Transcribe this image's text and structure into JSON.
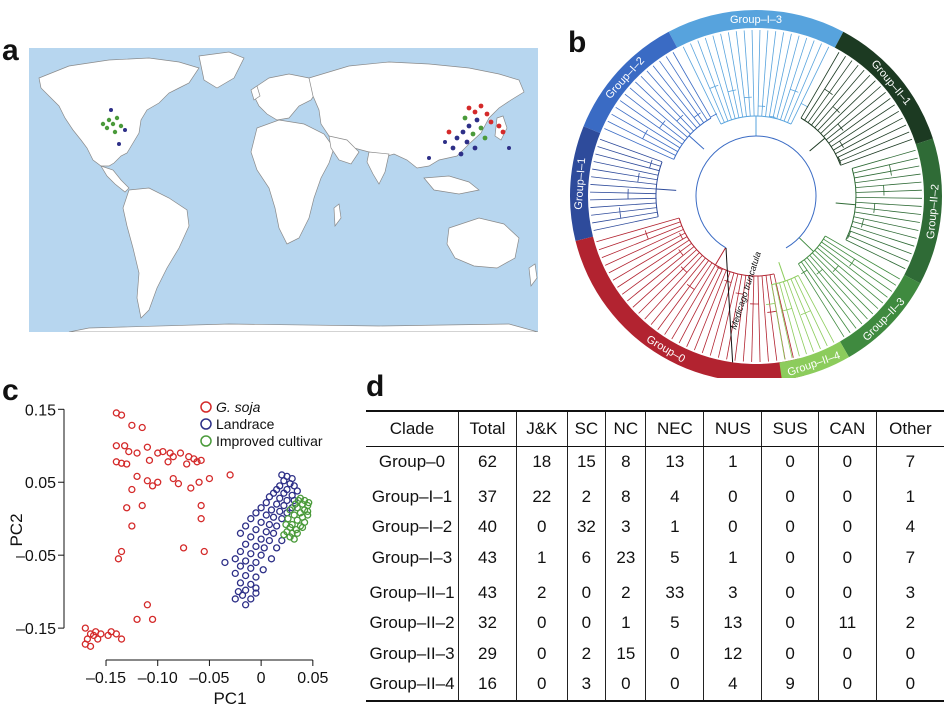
{
  "panels": {
    "a": "a",
    "b": "b",
    "c": "c",
    "d": "d"
  },
  "colors": {
    "gsoja": "#d42a2a",
    "landrace": "#2d2f87",
    "improved": "#4a9a3a",
    "group0": "#b22330",
    "groupI1": "#2e4b9b",
    "groupI2": "#3a6bc4",
    "groupI3": "#57a3dd",
    "groupII1": "#1c3a22",
    "groupII2": "#2f6b36",
    "groupII3": "#3f8a3f",
    "groupII4": "#8ccc5c",
    "ocean": "#b7d6ef",
    "land": "#ffffff"
  },
  "tree": {
    "groups": [
      {
        "label": "Group–I–3",
        "color": "#57a3dd"
      },
      {
        "label": "Group–I–2",
        "color": "#3a6bc4"
      },
      {
        "label": "Group–I–1",
        "color": "#2e4b9b"
      },
      {
        "label": "Group–0",
        "color": "#b22330"
      },
      {
        "label": "Group–II–1",
        "color": "#1c3a22"
      },
      {
        "label": "Group–II–2",
        "color": "#2f6b36"
      },
      {
        "label": "Group–II–3",
        "color": "#3f8a3f"
      },
      {
        "label": "Group–II–4",
        "color": "#8ccc5c"
      }
    ],
    "outgroup": "Medicago truncatula"
  },
  "chart_data": {
    "type": "scatter",
    "xlabel": "PC1",
    "ylabel": "PC2",
    "xlim": [
      -0.18,
      0.055
    ],
    "ylim": [
      -0.18,
      0.16
    ],
    "xticks": [
      "–0.15",
      "–0.10",
      "–0.05",
      "0",
      "0.05"
    ],
    "xtick_values": [
      -0.15,
      -0.1,
      -0.05,
      0,
      0.05
    ],
    "yticks": [
      "0.15",
      "0.05",
      "–0.05",
      "–0.15"
    ],
    "ytick_values": [
      0.15,
      0.05,
      -0.05,
      -0.15
    ],
    "legend": [
      {
        "name": "G. soja",
        "italic": true
      },
      {
        "name": "Landrace",
        "italic": false
      },
      {
        "name": "Improved cultivar",
        "italic": false
      }
    ],
    "series": [
      {
        "name": "G. soja",
        "points": [
          [
            -0.14,
            0.145
          ],
          [
            -0.135,
            0.142
          ],
          [
            -0.125,
            0.128
          ],
          [
            -0.115,
            0.125
          ],
          [
            -0.14,
            0.1
          ],
          [
            -0.132,
            0.1
          ],
          [
            -0.128,
            0.092
          ],
          [
            -0.12,
            0.09
          ],
          [
            -0.11,
            0.098
          ],
          [
            -0.1,
            0.09
          ],
          [
            -0.095,
            0.092
          ],
          [
            -0.088,
            0.09
          ],
          [
            -0.085,
            0.085
          ],
          [
            -0.078,
            0.09
          ],
          [
            -0.07,
            0.085
          ],
          [
            -0.065,
            0.082
          ],
          [
            -0.062,
            0.078
          ],
          [
            -0.058,
            0.08
          ],
          [
            -0.14,
            0.078
          ],
          [
            -0.135,
            0.076
          ],
          [
            -0.13,
            0.075
          ],
          [
            -0.108,
            0.08
          ],
          [
            -0.09,
            0.078
          ],
          [
            -0.072,
            0.075
          ],
          [
            -0.12,
            0.058
          ],
          [
            -0.11,
            0.052
          ],
          [
            -0.1,
            0.05
          ],
          [
            -0.085,
            0.055
          ],
          [
            -0.08,
            0.048
          ],
          [
            -0.06,
            0.05
          ],
          [
            -0.05,
            0.055
          ],
          [
            -0.03,
            0.06
          ],
          [
            -0.068,
            0.042
          ],
          [
            -0.125,
            0.04
          ],
          [
            -0.105,
            0.045
          ],
          [
            -0.13,
            0.015
          ],
          [
            -0.115,
            0.018
          ],
          [
            -0.058,
            0.018
          ],
          [
            -0.058,
            0.0
          ],
          [
            -0.125,
            -0.01
          ],
          [
            -0.075,
            -0.04
          ],
          [
            -0.135,
            -0.045
          ],
          [
            -0.138,
            -0.055
          ],
          [
            -0.055,
            -0.045
          ],
          [
            -0.17,
            -0.15
          ],
          [
            -0.165,
            -0.158
          ],
          [
            -0.162,
            -0.16
          ],
          [
            -0.158,
            -0.165
          ],
          [
            -0.168,
            -0.165
          ],
          [
            -0.16,
            -0.155
          ],
          [
            -0.155,
            -0.158
          ],
          [
            -0.148,
            -0.16
          ],
          [
            -0.145,
            -0.155
          ],
          [
            -0.14,
            -0.158
          ],
          [
            -0.135,
            -0.165
          ],
          [
            -0.12,
            -0.138
          ],
          [
            -0.105,
            -0.138
          ],
          [
            -0.11,
            -0.118
          ],
          [
            -0.17,
            -0.172
          ],
          [
            -0.165,
            -0.175
          ]
        ]
      },
      {
        "name": "Landrace",
        "points": [
          [
            0.02,
            0.06
          ],
          [
            0.025,
            0.058
          ],
          [
            0.03,
            0.055
          ],
          [
            0.022,
            0.052
          ],
          [
            0.028,
            0.048
          ],
          [
            0.018,
            0.045
          ],
          [
            0.032,
            0.045
          ],
          [
            0.015,
            0.04
          ],
          [
            0.025,
            0.04
          ],
          [
            0.035,
            0.038
          ],
          [
            0.012,
            0.035
          ],
          [
            0.022,
            0.035
          ],
          [
            0.03,
            0.032
          ],
          [
            0.008,
            0.03
          ],
          [
            0.018,
            0.028
          ],
          [
            0.025,
            0.025
          ],
          [
            0.032,
            0.025
          ],
          [
            0.005,
            0.022
          ],
          [
            0.015,
            0.02
          ],
          [
            0.022,
            0.018
          ],
          [
            0.03,
            0.015
          ],
          [
            0.0,
            0.015
          ],
          [
            0.01,
            0.012
          ],
          [
            0.018,
            0.01
          ],
          [
            0.025,
            0.008
          ],
          [
            -0.005,
            0.008
          ],
          [
            0.005,
            0.005
          ],
          [
            0.012,
            0.002
          ],
          [
            0.02,
            0.0
          ],
          [
            -0.01,
            0.0
          ],
          [
            0.0,
            -0.005
          ],
          [
            0.008,
            -0.008
          ],
          [
            0.015,
            -0.01
          ],
          [
            -0.015,
            -0.01
          ],
          [
            -0.005,
            -0.015
          ],
          [
            0.005,
            -0.018
          ],
          [
            0.012,
            -0.02
          ],
          [
            -0.02,
            -0.02
          ],
          [
            -0.01,
            -0.025
          ],
          [
            0.0,
            -0.028
          ],
          [
            0.008,
            -0.03
          ],
          [
            -0.015,
            -0.035
          ],
          [
            -0.005,
            -0.038
          ],
          [
            0.003,
            -0.04
          ],
          [
            -0.02,
            -0.045
          ],
          [
            -0.01,
            -0.048
          ],
          [
            0.0,
            -0.05
          ],
          [
            -0.025,
            -0.055
          ],
          [
            -0.015,
            -0.058
          ],
          [
            -0.005,
            -0.06
          ],
          [
            -0.02,
            -0.065
          ],
          [
            -0.01,
            -0.068
          ],
          [
            -0.025,
            -0.075
          ],
          [
            -0.015,
            -0.078
          ],
          [
            -0.005,
            -0.08
          ],
          [
            -0.02,
            -0.088
          ],
          [
            -0.01,
            -0.09
          ],
          [
            -0.015,
            -0.098
          ],
          [
            -0.005,
            -0.095
          ],
          [
            -0.018,
            -0.105
          ],
          [
            -0.01,
            -0.11
          ],
          [
            -0.015,
            -0.118
          ],
          [
            -0.025,
            -0.11
          ],
          [
            -0.022,
            -0.1
          ],
          [
            -0.005,
            -0.102
          ],
          [
            0.002,
            -0.07
          ],
          [
            0.01,
            -0.055
          ],
          [
            0.015,
            -0.04
          ],
          [
            -0.035,
            -0.06
          ],
          [
            0.02,
            -0.03
          ]
        ]
      },
      {
        "name": "Improved cultivar",
        "points": [
          [
            0.038,
            0.028
          ],
          [
            0.042,
            0.025
          ],
          [
            0.04,
            0.02
          ],
          [
            0.045,
            0.018
          ],
          [
            0.035,
            0.015
          ],
          [
            0.042,
            0.012
          ],
          [
            0.038,
            0.008
          ],
          [
            0.045,
            0.005
          ],
          [
            0.032,
            0.005
          ],
          [
            0.04,
            0.002
          ],
          [
            0.035,
            -0.002
          ],
          [
            0.042,
            -0.005
          ],
          [
            0.03,
            -0.008
          ],
          [
            0.038,
            -0.01
          ],
          [
            0.028,
            -0.012
          ],
          [
            0.034,
            -0.015
          ],
          [
            0.025,
            -0.018
          ],
          [
            0.03,
            -0.02
          ],
          [
            0.022,
            -0.022
          ],
          [
            0.028,
            -0.025
          ],
          [
            0.035,
            -0.02
          ],
          [
            0.04,
            -0.012
          ],
          [
            0.045,
            0.01
          ],
          [
            0.033,
            0.02
          ],
          [
            0.028,
            0.012
          ],
          [
            0.026,
            0.0
          ],
          [
            0.036,
            0.025
          ],
          [
            0.046,
            0.022
          ],
          [
            0.024,
            -0.008
          ],
          [
            0.032,
            -0.028
          ]
        ]
      }
    ]
  },
  "table": {
    "headers": [
      "Clade",
      "Total",
      "J&K",
      "SC",
      "NC",
      "NEC",
      "NUS",
      "SUS",
      "CAN",
      "Other"
    ],
    "rows": [
      [
        "Group–0",
        "62",
        "18",
        "15",
        "8",
        "13",
        "1",
        "0",
        "0",
        "7"
      ],
      [
        "Group–I–1",
        "37",
        "22",
        "2",
        "8",
        "4",
        "0",
        "0",
        "0",
        "1"
      ],
      [
        "Group–I–2",
        "40",
        "0",
        "32",
        "3",
        "1",
        "0",
        "0",
        "0",
        "4"
      ],
      [
        "Group–I–3",
        "43",
        "1",
        "6",
        "23",
        "5",
        "1",
        "0",
        "0",
        "7"
      ],
      [
        "Group–II–1",
        "43",
        "2",
        "0",
        "2",
        "33",
        "3",
        "0",
        "0",
        "3"
      ],
      [
        "Group–II–2",
        "32",
        "0",
        "0",
        "1",
        "5",
        "13",
        "0",
        "11",
        "2"
      ],
      [
        "Group–II–3",
        "29",
        "0",
        "2",
        "15",
        "0",
        "12",
        "0",
        "0",
        "0"
      ],
      [
        "Group–II–4",
        "16",
        "0",
        "3",
        "0",
        "0",
        "4",
        "9",
        "0",
        "0"
      ]
    ]
  }
}
